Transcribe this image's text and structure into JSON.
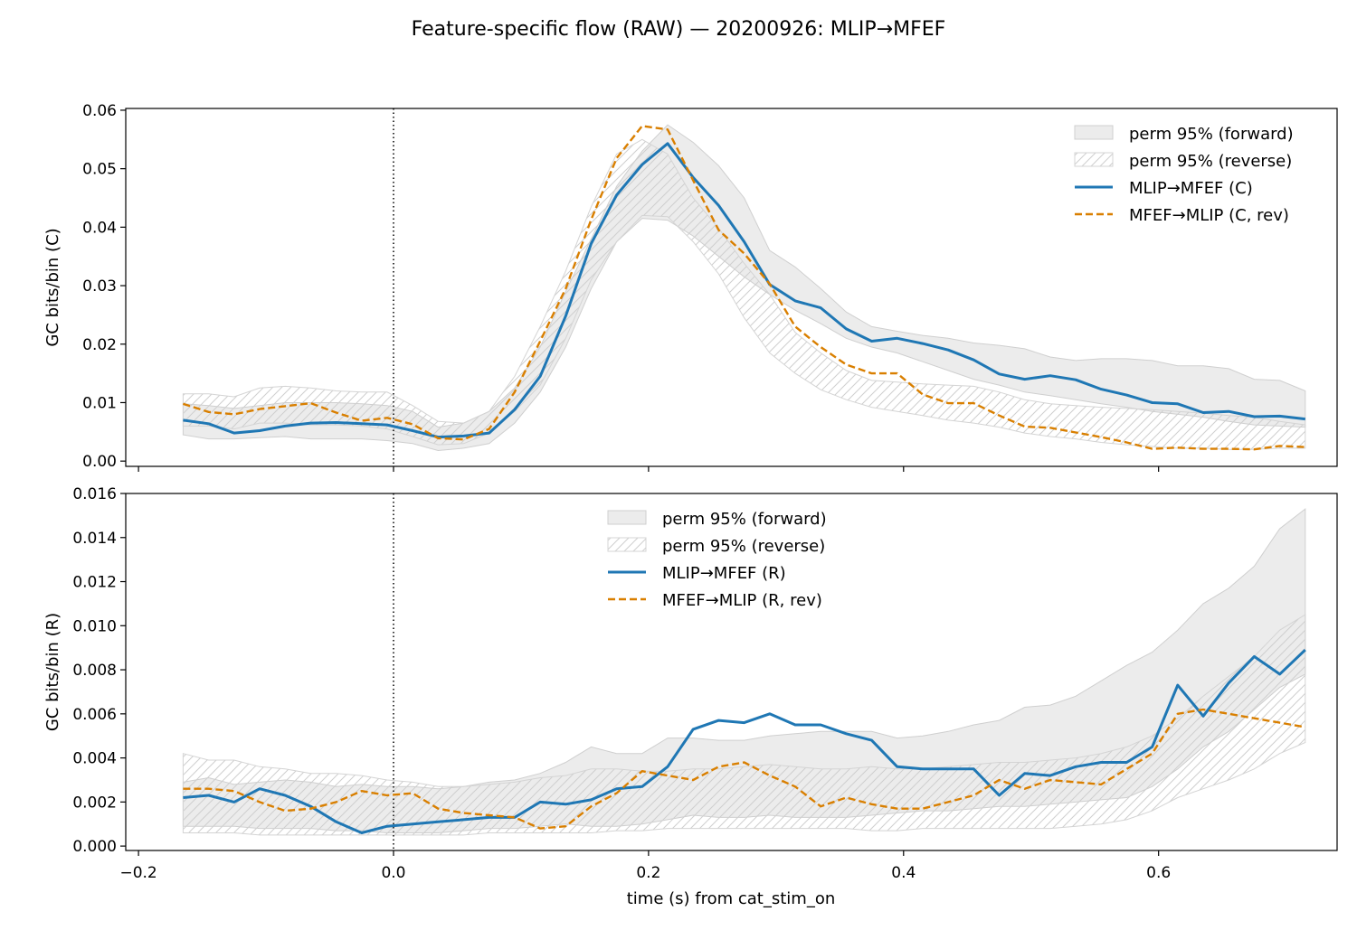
{
  "figure": {
    "title": "Feature-specific flow (RAW) — 20200926: MLIP→MFEF",
    "xlabel": "time (s) from cat_stim_on",
    "xticks": [
      -0.2,
      0.0,
      0.2,
      0.4,
      0.6
    ],
    "xtick_labels": [
      "−0.2",
      "0.0",
      "0.2",
      "0.4",
      "0.6"
    ],
    "xlim": [
      -0.21,
      0.74
    ],
    "vline_x": 0.0
  },
  "chart_data": [
    {
      "type": "line",
      "ylabel": "GC bits/bin (C)",
      "ylim": [
        -0.0009,
        0.0603
      ],
      "yticks": [
        0.0,
        0.01,
        0.02,
        0.03,
        0.04,
        0.05,
        0.06
      ],
      "ytick_labels": [
        "0.00",
        "0.01",
        "0.02",
        "0.03",
        "0.04",
        "0.05",
        "0.06"
      ],
      "legend_position": "top-right",
      "legend": [
        "perm 95% (forward)",
        "perm 95% (reverse)",
        "MLIP→MFEF (C)",
        "MFEF→MLIP (C, rev)"
      ],
      "x": [
        -0.165,
        -0.145,
        -0.125,
        -0.105,
        -0.085,
        -0.065,
        -0.045,
        -0.025,
        -0.005,
        0.015,
        0.035,
        0.055,
        0.075,
        0.095,
        0.115,
        0.135,
        0.155,
        0.175,
        0.195,
        0.215,
        0.235,
        0.255,
        0.275,
        0.295,
        0.315,
        0.335,
        0.355,
        0.375,
        0.395,
        0.415,
        0.435,
        0.455,
        0.475,
        0.495,
        0.515,
        0.535,
        0.555,
        0.575,
        0.595,
        0.615,
        0.635,
        0.655,
        0.675,
        0.695,
        0.715
      ],
      "series": [
        {
          "name": "MLIP→MFEF (C)",
          "color": "#1f77b4",
          "style": "solid",
          "values": [
            0.007,
            0.0064,
            0.0048,
            0.0052,
            0.006,
            0.0065,
            0.0066,
            0.0064,
            0.0062,
            0.0052,
            0.0041,
            0.0043,
            0.0048,
            0.0088,
            0.0145,
            0.0248,
            0.0372,
            0.0455,
            0.0507,
            0.0543,
            0.0485,
            0.0437,
            0.0375,
            0.0302,
            0.0274,
            0.0262,
            0.0226,
            0.0205,
            0.021,
            0.0201,
            0.019,
            0.0173,
            0.0149,
            0.014,
            0.0146,
            0.0139,
            0.0123,
            0.0113,
            0.01,
            0.0098,
            0.0083,
            0.0085,
            0.0076,
            0.0077,
            0.0072
          ]
        },
        {
          "name": "MFEF→MLIP (C, rev)",
          "color": "#d97f00",
          "style": "dashed",
          "values": [
            0.0098,
            0.0084,
            0.008,
            0.0089,
            0.0094,
            0.0099,
            0.0083,
            0.0069,
            0.0074,
            0.0063,
            0.0039,
            0.0037,
            0.0055,
            0.0118,
            0.0205,
            0.0295,
            0.0413,
            0.0518,
            0.0573,
            0.0567,
            0.048,
            0.0395,
            0.0355,
            0.0303,
            0.023,
            0.0195,
            0.0165,
            0.015,
            0.015,
            0.0114,
            0.0099,
            0.0099,
            0.0078,
            0.0059,
            0.0057,
            0.0049,
            0.0041,
            0.0032,
            0.0021,
            0.0023,
            0.0021,
            0.0021,
            0.002,
            0.0026,
            0.0024
          ]
        }
      ],
      "bands": [
        {
          "name": "perm 95% (forward)",
          "fill": "#d9d9d9",
          "lower": [
            0.0045,
            0.0038,
            0.0038,
            0.004,
            0.0042,
            0.0038,
            0.0038,
            0.0038,
            0.0035,
            0.003,
            0.0018,
            0.0022,
            0.003,
            0.0065,
            0.0118,
            0.0195,
            0.0295,
            0.0375,
            0.0415,
            0.0412,
            0.0385,
            0.035,
            0.0315,
            0.0285,
            0.0258,
            0.0235,
            0.021,
            0.0195,
            0.0185,
            0.017,
            0.0155,
            0.014,
            0.013,
            0.0118,
            0.0112,
            0.0105,
            0.0098,
            0.0092,
            0.0085,
            0.008,
            0.0075,
            0.0068,
            0.0062,
            0.006,
            0.0058
          ],
          "upper": [
            0.0098,
            0.0095,
            0.009,
            0.0095,
            0.01,
            0.01,
            0.01,
            0.0098,
            0.0095,
            0.0085,
            0.0058,
            0.0065,
            0.0085,
            0.0125,
            0.0195,
            0.029,
            0.038,
            0.047,
            0.053,
            0.0575,
            0.0545,
            0.0505,
            0.045,
            0.036,
            0.0332,
            0.0295,
            0.0255,
            0.023,
            0.0222,
            0.0215,
            0.021,
            0.0202,
            0.0198,
            0.0192,
            0.0178,
            0.0172,
            0.0175,
            0.0175,
            0.0172,
            0.0163,
            0.0163,
            0.0158,
            0.014,
            0.0138,
            0.012
          ]
        },
        {
          "name": "perm 95% (reverse)",
          "fill": "none",
          "lower": [
            0.006,
            0.006,
            0.0055,
            0.0065,
            0.0065,
            0.0062,
            0.0062,
            0.006,
            0.0055,
            0.0042,
            0.0028,
            0.003,
            0.0048,
            0.0085,
            0.013,
            0.021,
            0.031,
            0.0375,
            0.042,
            0.0418,
            0.0375,
            0.032,
            0.0245,
            0.0185,
            0.015,
            0.0122,
            0.0105,
            0.0092,
            0.0085,
            0.0078,
            0.007,
            0.0065,
            0.0058,
            0.0048,
            0.0042,
            0.0038,
            0.0032,
            0.0028,
            0.0025,
            0.0022,
            0.0022,
            0.002,
            0.002,
            0.0022,
            0.0022
          ],
          "upper": [
            0.0115,
            0.0115,
            0.011,
            0.0125,
            0.0128,
            0.0125,
            0.012,
            0.0118,
            0.0118,
            0.0095,
            0.0068,
            0.0065,
            0.0085,
            0.0145,
            0.023,
            0.0325,
            0.0435,
            0.0525,
            0.055,
            0.0525,
            0.045,
            0.0398,
            0.0338,
            0.0285,
            0.022,
            0.0185,
            0.0155,
            0.0138,
            0.0135,
            0.0132,
            0.013,
            0.0128,
            0.0118,
            0.0105,
            0.0098,
            0.0095,
            0.0092,
            0.009,
            0.0088,
            0.0085,
            0.0082,
            0.0078,
            0.0075,
            0.0068,
            0.0062
          ]
        }
      ]
    },
    {
      "type": "line",
      "ylabel": "GC bits/bin (R)",
      "ylim": [
        -0.0002,
        0.016
      ],
      "yticks": [
        0.0,
        0.002,
        0.004,
        0.006,
        0.008,
        0.01,
        0.012,
        0.014,
        0.016
      ],
      "ytick_labels": [
        "0.000",
        "0.002",
        "0.004",
        "0.006",
        "0.008",
        "0.010",
        "0.012",
        "0.014",
        "0.016"
      ],
      "legend_position": "top-center",
      "legend": [
        "perm 95% (forward)",
        "perm 95% (reverse)",
        "MLIP→MFEF (R)",
        "MFEF→MLIP (R, rev)"
      ],
      "x": [
        -0.165,
        -0.145,
        -0.125,
        -0.105,
        -0.085,
        -0.065,
        -0.045,
        -0.025,
        -0.005,
        0.015,
        0.035,
        0.055,
        0.075,
        0.095,
        0.115,
        0.135,
        0.155,
        0.175,
        0.195,
        0.215,
        0.235,
        0.255,
        0.275,
        0.295,
        0.315,
        0.335,
        0.355,
        0.375,
        0.395,
        0.415,
        0.435,
        0.455,
        0.475,
        0.495,
        0.515,
        0.535,
        0.555,
        0.575,
        0.595,
        0.615,
        0.635,
        0.655,
        0.675,
        0.695,
        0.715
      ],
      "series": [
        {
          "name": "MLIP→MFEF (R)",
          "color": "#1f77b4",
          "style": "solid",
          "values": [
            0.0022,
            0.0023,
            0.002,
            0.0026,
            0.0023,
            0.0018,
            0.0011,
            0.0006,
            0.0009,
            0.001,
            0.0011,
            0.0012,
            0.0013,
            0.0013,
            0.002,
            0.0019,
            0.0021,
            0.0026,
            0.0027,
            0.0036,
            0.0053,
            0.0057,
            0.0056,
            0.006,
            0.0055,
            0.0055,
            0.0051,
            0.0048,
            0.0036,
            0.0035,
            0.0035,
            0.0035,
            0.0023,
            0.0033,
            0.0032,
            0.0036,
            0.0038,
            0.0038,
            0.0045,
            0.0073,
            0.0059,
            0.0074,
            0.0086,
            0.0078,
            0.0089
          ]
        },
        {
          "name": "MFEF→MLIP (R, rev)",
          "color": "#d97f00",
          "style": "dashed",
          "values": [
            0.0026,
            0.0026,
            0.0025,
            0.002,
            0.0016,
            0.0017,
            0.002,
            0.0025,
            0.0023,
            0.0024,
            0.0017,
            0.0015,
            0.0014,
            0.0013,
            0.0008,
            0.0009,
            0.0018,
            0.0024,
            0.0034,
            0.0032,
            0.003,
            0.0036,
            0.0038,
            0.0032,
            0.0027,
            0.0018,
            0.0022,
            0.0019,
            0.0017,
            0.0017,
            0.002,
            0.0023,
            0.003,
            0.0026,
            0.003,
            0.0029,
            0.0028,
            0.0035,
            0.0042,
            0.006,
            0.0062,
            0.006,
            0.0058,
            0.0056,
            0.0054
          ]
        }
      ],
      "bands": [
        {
          "name": "perm 95% (forward)",
          "fill": "#d9d9d9",
          "lower": [
            0.0009,
            0.0009,
            0.0009,
            0.0008,
            0.0008,
            0.0008,
            0.0007,
            0.0007,
            0.0006,
            0.0006,
            0.0006,
            0.0007,
            0.0008,
            0.0008,
            0.0009,
            0.001,
            0.0009,
            0.0009,
            0.001,
            0.0012,
            0.0014,
            0.0013,
            0.0013,
            0.0014,
            0.0013,
            0.0013,
            0.0013,
            0.0014,
            0.0015,
            0.0016,
            0.0016,
            0.0017,
            0.0018,
            0.0018,
            0.0019,
            0.002,
            0.0021,
            0.0022,
            0.0027,
            0.0035,
            0.0045,
            0.0052,
            0.0062,
            0.0072,
            0.0078
          ],
          "upper": [
            0.0029,
            0.0031,
            0.0028,
            0.0029,
            0.003,
            0.0029,
            0.0027,
            0.0028,
            0.0027,
            0.0027,
            0.0026,
            0.0027,
            0.0029,
            0.003,
            0.0033,
            0.0038,
            0.0045,
            0.0042,
            0.0042,
            0.0049,
            0.0049,
            0.0048,
            0.0048,
            0.005,
            0.0051,
            0.0052,
            0.0052,
            0.0052,
            0.0049,
            0.005,
            0.0052,
            0.0055,
            0.0057,
            0.0063,
            0.0064,
            0.0068,
            0.0075,
            0.0082,
            0.0088,
            0.0098,
            0.011,
            0.0117,
            0.0127,
            0.0144,
            0.0153
          ]
        },
        {
          "name": "perm 95% (reverse)",
          "fill": "none",
          "lower": [
            0.0006,
            0.0006,
            0.0006,
            0.0005,
            0.0005,
            0.0005,
            0.0005,
            0.0005,
            0.0005,
            0.0005,
            0.0005,
            0.0005,
            0.0006,
            0.0006,
            0.0006,
            0.0006,
            0.0006,
            0.0007,
            0.0007,
            0.0008,
            0.0008,
            0.0008,
            0.0008,
            0.0008,
            0.0008,
            0.0008,
            0.0008,
            0.0007,
            0.0007,
            0.0008,
            0.0008,
            0.0008,
            0.0008,
            0.0008,
            0.0008,
            0.0009,
            0.001,
            0.0012,
            0.0016,
            0.0022,
            0.0026,
            0.003,
            0.0035,
            0.0042,
            0.0047
          ],
          "upper": [
            0.0042,
            0.0039,
            0.0039,
            0.0036,
            0.0035,
            0.0033,
            0.0033,
            0.0032,
            0.003,
            0.0029,
            0.0027,
            0.0027,
            0.0028,
            0.0029,
            0.0031,
            0.0032,
            0.0035,
            0.0035,
            0.0034,
            0.0034,
            0.0035,
            0.0035,
            0.0036,
            0.0037,
            0.0036,
            0.0035,
            0.0035,
            0.0036,
            0.0035,
            0.0035,
            0.0036,
            0.0037,
            0.0038,
            0.0038,
            0.0039,
            0.004,
            0.0042,
            0.0045,
            0.005,
            0.0058,
            0.0068,
            0.0077,
            0.0086,
            0.0098,
            0.0105
          ]
        }
      ]
    }
  ]
}
